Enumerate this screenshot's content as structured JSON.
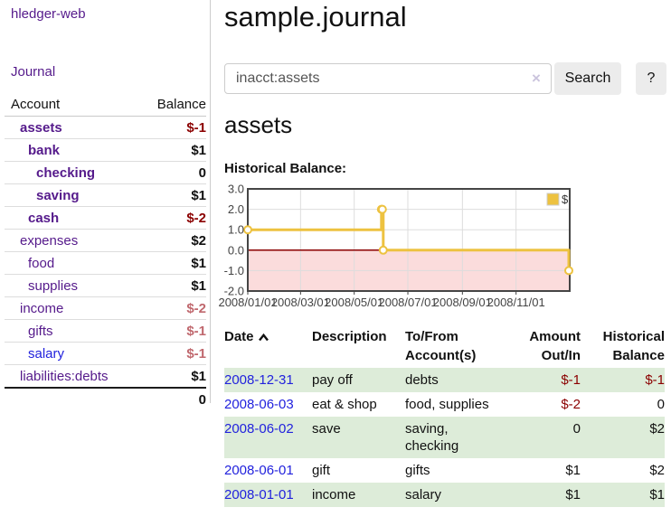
{
  "colors": {
    "purple": "#551a8b",
    "blue": "#2222dd",
    "darkred": "#8b0000",
    "rose": "#c0686e",
    "divider": "#cccccc",
    "row-line": "#dddddd",
    "stripe": "#ddecd9",
    "btn-bg": "#ececec",
    "input-border": "#cccccc",
    "clear-x": "#cbc4dd",
    "chart-gold": "#edc240",
    "chart-pink": "#fbdcdc",
    "chart-zero": "#8b0000",
    "chart-grid": "#dddddd",
    "chart-border": "#454545",
    "chart-tick": "#444444"
  },
  "sidebar": {
    "app_title": "hledger-web",
    "journal_link": "Journal",
    "table": {
      "headers": {
        "account": "Account",
        "balance": "Balance"
      },
      "accounts": [
        {
          "name": "assets",
          "indent": 1,
          "bold": true,
          "balance": "$-1",
          "balance_color": "darkred"
        },
        {
          "name": "bank",
          "indent": 2,
          "bold": true,
          "balance": "$1",
          "balance_color": "black"
        },
        {
          "name": "checking",
          "indent": 3,
          "bold": true,
          "balance": "0",
          "balance_color": "black"
        },
        {
          "name": "saving",
          "indent": 3,
          "bold": true,
          "balance": "$1",
          "balance_color": "black"
        },
        {
          "name": "cash",
          "indent": 2,
          "bold": true,
          "balance": "$-2",
          "balance_color": "darkred"
        },
        {
          "name": "expenses",
          "indent": 1,
          "bold": false,
          "balance": "$2",
          "balance_color": "black"
        },
        {
          "name": "food",
          "indent": 2,
          "bold": false,
          "balance": "$1",
          "balance_color": "black"
        },
        {
          "name": "supplies",
          "indent": 2,
          "bold": false,
          "balance": "$1",
          "balance_color": "black"
        },
        {
          "name": "income",
          "indent": 1,
          "bold": false,
          "balance": "$-2",
          "balance_color": "rose"
        },
        {
          "name": "gifts",
          "indent": 2,
          "bold": false,
          "balance": "$-1",
          "balance_color": "rose"
        },
        {
          "name": "salary",
          "indent": 2,
          "bold": false,
          "balance": "$-1",
          "balance_color": "rose",
          "link_state": "unvisited"
        },
        {
          "name": "liabilities:debts",
          "indent": 1,
          "bold": false,
          "balance": "$1",
          "balance_color": "black"
        }
      ],
      "total": "0"
    }
  },
  "main": {
    "title": "sample.journal",
    "search": {
      "value": "inacct:assets",
      "clear_icon": "×",
      "button_label": "Search",
      "help_label": "?"
    },
    "section_title": "assets",
    "chart_label": "Historical Balance:"
  },
  "chart_data": {
    "type": "line",
    "step": true,
    "title": "Historical Balance",
    "series": [
      {
        "name": "$",
        "color": "#edc240",
        "points": [
          {
            "date": "2008/01/01",
            "value": 1
          },
          {
            "date": "2008/06/01",
            "value": 2
          },
          {
            "date": "2008/06/02",
            "value": 2
          },
          {
            "date": "2008/06/03",
            "value": 0
          },
          {
            "date": "2008/12/31",
            "value": -1
          }
        ]
      }
    ],
    "x_axis": {
      "start": "2008/01/01",
      "end": "2009/01/01",
      "tick_labels": [
        "2008/01/01",
        "2008/03/01",
        "2008/05/01",
        "2008/07/01",
        "2008/09/01",
        "2008/11/01"
      ]
    },
    "y_axis": {
      "min": -2,
      "max": 3,
      "tick_labels": [
        "3.0",
        "2.0",
        "1.0",
        "0.0",
        "-1.0",
        "-2.0"
      ]
    },
    "legend": {
      "label": "$",
      "position": "top-right"
    },
    "grid": true,
    "negative_region_shaded": true
  },
  "register": {
    "headers": [
      {
        "label": "Date",
        "sorted": "asc"
      },
      {
        "label": "Description"
      },
      {
        "label": "To/From Account(s)"
      },
      {
        "label": "Amount Out/In",
        "align": "right"
      },
      {
        "label": "Historical Balance",
        "align": "right"
      }
    ],
    "rows": [
      {
        "date": "2008-12-31",
        "description": "pay off",
        "accounts": "debts",
        "amount": "$-1",
        "amount_color": "darkred",
        "balance": "$-1",
        "balance_color": "darkred",
        "stripe": true
      },
      {
        "date": "2008-06-03",
        "description": "eat & shop",
        "accounts": "food, supplies",
        "amount": "$-2",
        "amount_color": "darkred",
        "balance": "0",
        "balance_color": "black",
        "stripe": false
      },
      {
        "date": "2008-06-02",
        "description": "save",
        "accounts": "saving,\nchecking",
        "amount": "0",
        "amount_color": "black",
        "balance": "$2",
        "balance_color": "black",
        "stripe": true
      },
      {
        "date": "2008-06-01",
        "description": "gift",
        "accounts": "gifts",
        "amount": "$1",
        "amount_color": "black",
        "balance": "$2",
        "balance_color": "black",
        "stripe": false
      },
      {
        "date": "2008-01-01",
        "description": "income",
        "accounts": "salary",
        "amount": "$1",
        "amount_color": "black",
        "balance": "$1",
        "balance_color": "black",
        "stripe": true
      }
    ]
  }
}
